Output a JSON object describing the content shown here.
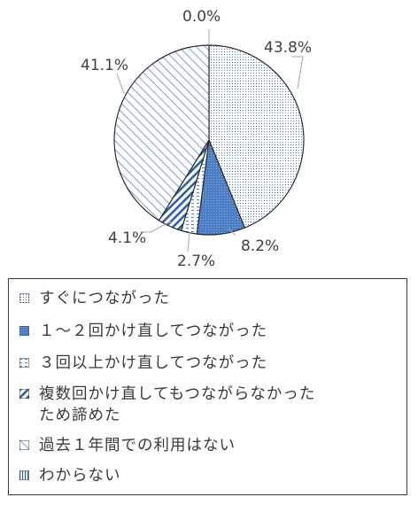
{
  "chart_data": {
    "type": "pie",
    "categories": [
      "すぐにつながった",
      "１～２回かけ直してつながった",
      "３回以上かけ直してつながった",
      "複数回かけ直してもつながらなかったため諦めた",
      "過去１年間での利用はない",
      "わからない"
    ],
    "values": [
      43.8,
      8.2,
      2.7,
      4.1,
      41.1,
      0.0
    ],
    "data_labels": [
      "43.8%",
      "8.2%",
      "2.7%",
      "4.1%",
      "41.1%",
      "0.0%"
    ],
    "colors": [
      "#e6f0fa",
      "#4a7dc4",
      "#ffffff",
      "#ffffff",
      "#ffffff",
      "#ffffff"
    ],
    "patterns": [
      "dots",
      "solid",
      "dash",
      "diag-thick",
      "diag-thin",
      "vlines"
    ],
    "legend_position": "bottom"
  },
  "legend": {
    "items": [
      {
        "line1": "すぐにつながった",
        "line2": ""
      },
      {
        "line1": "１～２回かけ直してつながった",
        "line2": ""
      },
      {
        "line1": "３回以上かけ直してつながった",
        "line2": ""
      },
      {
        "line1": "複数回かけ直してもつながらなかった",
        "line2": "ため諦めた"
      },
      {
        "line1": "過去１年間での利用はない",
        "line2": ""
      },
      {
        "line1": "わからない",
        "line2": ""
      }
    ]
  }
}
